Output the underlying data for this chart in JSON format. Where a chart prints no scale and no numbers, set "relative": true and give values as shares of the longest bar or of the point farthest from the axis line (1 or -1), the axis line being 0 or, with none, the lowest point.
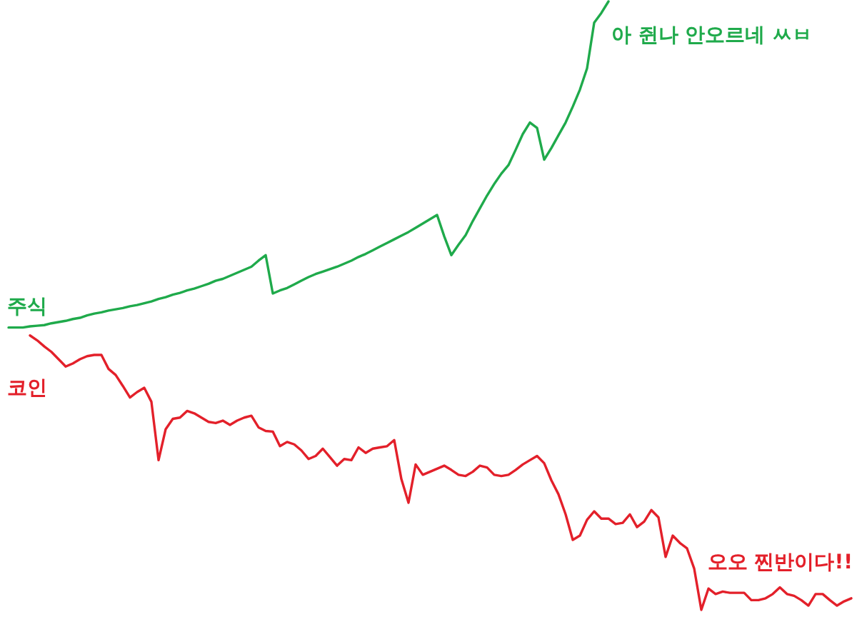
{
  "chart_data": {
    "type": "line",
    "relative": true,
    "categories": [
      null,
      null,
      null,
      null,
      null,
      null,
      null,
      null,
      null,
      null,
      null,
      null,
      null,
      null,
      null,
      null,
      null,
      null,
      null,
      null,
      null,
      null,
      null,
      null,
      null,
      null,
      null,
      null,
      null,
      null,
      null,
      null,
      null,
      null,
      null,
      null,
      null,
      null,
      null,
      null,
      null,
      null,
      null,
      null,
      null,
      null,
      null,
      null,
      null,
      null,
      null,
      null,
      null,
      null,
      null,
      null,
      null,
      null,
      null,
      null,
      null,
      null,
      null,
      null,
      null,
      null,
      null,
      null,
      null,
      null,
      null,
      null,
      null,
      null,
      null,
      null,
      null,
      null,
      null,
      null,
      null,
      null,
      null,
      null,
      null,
      null,
      null,
      null,
      null,
      null,
      null,
      null,
      null,
      null,
      null,
      null,
      null,
      null,
      null,
      null,
      null,
      null,
      null,
      null,
      null,
      null,
      null,
      null,
      null,
      null,
      null,
      null,
      null,
      null,
      null,
      null,
      null,
      null,
      null
    ],
    "series": [
      {
        "name": "주식",
        "color": "#1faa4b",
        "values": [
          0.464,
          0.464,
          0.464,
          0.466,
          0.467,
          0.468,
          0.471,
          0.473,
          0.475,
          0.478,
          0.48,
          0.484,
          0.487,
          0.489,
          0.492,
          0.494,
          0.496,
          0.499,
          0.501,
          0.504,
          0.507,
          0.511,
          0.514,
          0.518,
          0.521,
          0.525,
          0.528,
          0.532,
          0.536,
          0.541,
          0.544,
          0.549,
          0.554,
          0.559,
          0.564,
          0.574,
          0.583,
          0.52,
          0.525,
          0.529,
          0.535,
          0.541,
          0.547,
          0.552,
          0.556,
          0.56,
          0.564,
          0.569,
          0.574,
          0.58,
          0.585,
          0.591,
          0.597,
          0.603,
          0.609,
          0.615,
          0.621,
          0.628,
          0.635,
          0.642,
          0.649,
          0.614,
          0.583,
          0.6,
          0.616,
          0.639,
          0.66,
          0.681,
          0.7,
          0.717,
          0.731,
          0.756,
          0.782,
          0.801,
          0.792,
          0.74,
          0.759,
          0.78,
          0.801,
          0.827,
          0.855,
          0.89,
          0.965,
          0.981,
          1,
          null,
          null,
          null,
          null,
          null,
          null,
          null,
          null,
          null,
          null,
          null,
          null,
          null,
          null,
          null,
          null,
          null,
          null,
          null,
          null,
          null,
          null,
          null,
          null,
          null,
          null,
          null,
          null,
          null,
          null,
          null,
          null,
          null,
          null
        ]
      },
      {
        "name": "코인",
        "color": "#e3202a",
        "values": [
          null,
          null,
          null,
          0.451,
          0.443,
          0.433,
          0.424,
          0.412,
          0.4,
          0.405,
          0.412,
          0.417,
          0.419,
          0.419,
          0.396,
          0.386,
          0.368,
          0.349,
          0.358,
          0.365,
          0.342,
          0.246,
          0.297,
          0.314,
          0.316,
          0.327,
          0.323,
          0.316,
          0.309,
          0.307,
          0.311,
          0.304,
          0.311,
          0.316,
          0.319,
          0.3,
          0.294,
          0.293,
          0.269,
          0.276,
          0.272,
          0.262,
          0.248,
          0.253,
          0.265,
          0.251,
          0.237,
          0.248,
          0.246,
          0.267,
          0.258,
          0.265,
          0.267,
          0.269,
          0.279,
          0.215,
          0.176,
          0.239,
          0.222,
          0.227,
          0.232,
          0.237,
          0.23,
          0.222,
          0.22,
          0.227,
          0.237,
          0.234,
          0.222,
          0.22,
          0.222,
          0.23,
          0.239,
          0.246,
          0.253,
          0.241,
          0.213,
          0.19,
          0.157,
          0.115,
          0.122,
          0.148,
          0.162,
          0.15,
          0.15,
          0.141,
          0.143,
          0.157,
          0.136,
          0.145,
          0.164,
          0.152,
          0.087,
          0.122,
          0.11,
          0.101,
          0.068,
          0,
          0.035,
          0.026,
          0.03,
          0.028,
          0.028,
          0.028,
          0.016,
          0.016,
          0.019,
          0.026,
          0.037,
          0.026,
          0.023,
          0.016,
          0.007,
          0.026,
          0.026,
          0.016,
          0.007,
          0.014,
          0.019
        ]
      }
    ],
    "annotations": [
      "아 쥔나 안오르네 ㅆㅂ",
      "오오 찐반이다!!"
    ]
  }
}
